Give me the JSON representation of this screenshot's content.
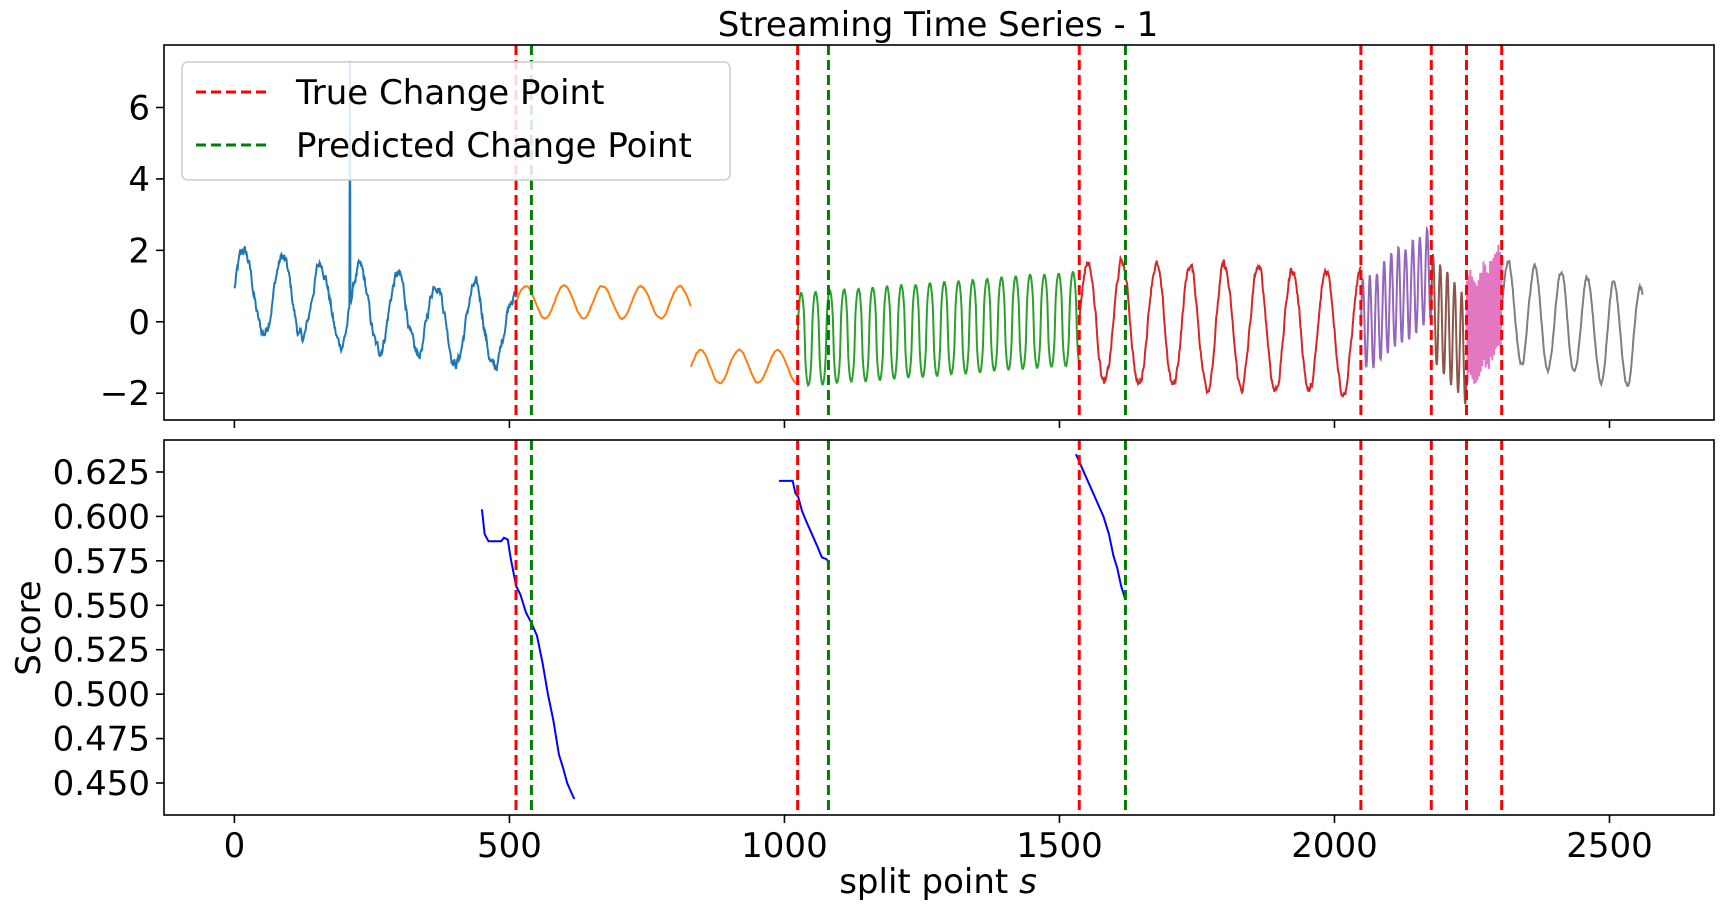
{
  "chart_data": [
    {
      "type": "line",
      "title": "Streaming Time Series - 1",
      "xlabel": "",
      "ylabel": "",
      "xlim": [
        -128,
        2690
      ],
      "ylim": [
        -2.75,
        7.75
      ],
      "xticks": [
        0,
        500,
        1000,
        1500,
        2000,
        2500
      ],
      "yticks": [
        -2,
        0,
        2,
        4,
        6
      ],
      "ytick_labels": [
        "−2",
        "0",
        "2",
        "4",
        "6"
      ],
      "show_xtick_labels": false,
      "legend": {
        "placement": "top-left",
        "entries": [
          {
            "label": "True Change Point",
            "color": "#ff0000",
            "style": "dashed"
          },
          {
            "label": "Predicted Change Point",
            "color": "#008000",
            "style": "dashed"
          }
        ]
      },
      "true_change_points": [
        512,
        1024,
        1536,
        2048,
        2176,
        2240,
        2304
      ],
      "predicted_change_points": [
        540,
        1080,
        1620
      ],
      "segments": [
        {
          "start": 0,
          "end": 512,
          "color": "#1f77b4",
          "amp": 1.1,
          "period": 70,
          "base": 0.9,
          "trend": -1.2,
          "noise": 0.25,
          "spike_at": 210,
          "spike_val": 7.3
        },
        {
          "start": 512,
          "end": 830,
          "color": "#ff7f0e",
          "amp": 0.45,
          "period": 70,
          "base": 0.55,
          "trend": 0.0,
          "noise": 0.03
        },
        {
          "start": 830,
          "end": 1024,
          "color": "#ff7f0e",
          "amp": 0.45,
          "period": 70,
          "base": -1.25,
          "trend": 0.0,
          "noise": 0.03
        },
        {
          "start": 1024,
          "end": 1536,
          "color": "#2ca02c",
          "amp": 1.3,
          "period": 26,
          "base": -0.5,
          "trend": 0.6,
          "noise": 0.02,
          "sharp": true
        },
        {
          "start": 1536,
          "end": 2048,
          "color": "#d62728",
          "amp": 1.7,
          "period": 62,
          "base": 0.0,
          "trend": -0.3,
          "noise": 0.2
        },
        {
          "start": 2048,
          "end": 2176,
          "color": "#9467bd",
          "amp": 1.3,
          "period": 13,
          "base": -0.2,
          "trend": 1.6,
          "noise": 0.15
        },
        {
          "start": 2176,
          "end": 2240,
          "color": "#8c564b",
          "amp": 1.5,
          "period": 13,
          "base": 0.4,
          "trend": -1.2,
          "noise": 0.1
        },
        {
          "start": 2240,
          "end": 2304,
          "color": "#e377c2",
          "amp": 1.6,
          "period": 3,
          "base": -0.3,
          "trend": 0.8,
          "noise": 0.3
        },
        {
          "start": 2304,
          "end": 2560,
          "color": "#7f7f7f",
          "amp": 1.4,
          "period": 48,
          "base": 0.3,
          "trend": -0.8,
          "noise": 0.12
        }
      ]
    },
    {
      "type": "line",
      "title": "",
      "xlabel": "split point  s",
      "ylabel": "Score",
      "xlim": [
        -128,
        2690
      ],
      "ylim": [
        0.432,
        0.643
      ],
      "xticks": [
        0,
        500,
        1000,
        1500,
        2000,
        2500
      ],
      "xtick_labels": [
        "0",
        "500",
        "1000",
        "1500",
        "2000",
        "2500"
      ],
      "yticks": [
        0.45,
        0.475,
        0.5,
        0.525,
        0.55,
        0.575,
        0.6,
        0.625
      ],
      "ytick_labels": [
        "0.450",
        "0.475",
        "0.500",
        "0.525",
        "0.550",
        "0.575",
        "0.600",
        "0.625"
      ],
      "true_change_points": [
        512,
        1024,
        1536,
        2048,
        2176,
        2240,
        2304
      ],
      "predicted_change_points": [
        540,
        1080,
        1620
      ],
      "series": [
        {
          "color": "#0000ff",
          "x": [
            450,
            455,
            462,
            470,
            485,
            490,
            497,
            502,
            512,
            520,
            530,
            540,
            550,
            560,
            570,
            580,
            590,
            598,
            605,
            612,
            618
          ],
          "y": [
            0.604,
            0.59,
            0.586,
            0.586,
            0.586,
            0.588,
            0.587,
            0.577,
            0.561,
            0.556,
            0.546,
            0.54,
            0.533,
            0.518,
            0.5,
            0.485,
            0.466,
            0.458,
            0.45,
            0.445,
            0.441
          ]
        },
        {
          "color": "#0000ff",
          "x": [
            990,
            1005,
            1015,
            1020,
            1025,
            1032,
            1040,
            1050,
            1060,
            1068,
            1076,
            1082
          ],
          "y": [
            0.62,
            0.62,
            0.62,
            0.613,
            0.611,
            0.603,
            0.597,
            0.59,
            0.583,
            0.577,
            0.576,
            0.574
          ]
        },
        {
          "color": "#0000ff",
          "x": [
            1530,
            1540,
            1550,
            1560,
            1570,
            1580,
            1590,
            1598,
            1605,
            1612,
            1620
          ],
          "y": [
            0.635,
            0.628,
            0.621,
            0.614,
            0.607,
            0.6,
            0.59,
            0.578,
            0.571,
            0.561,
            0.553
          ]
        }
      ]
    }
  ]
}
